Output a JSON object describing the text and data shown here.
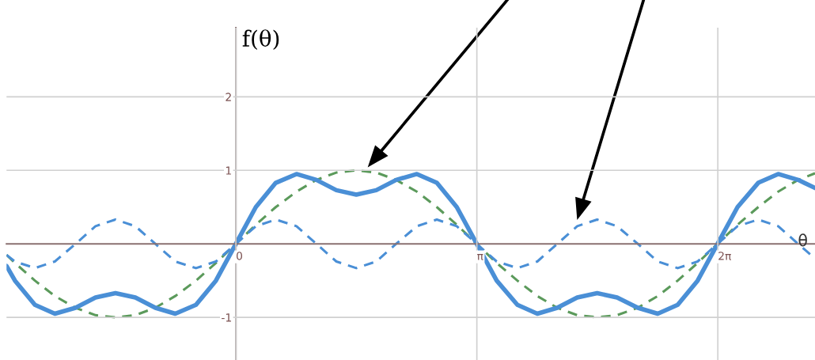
{
  "chart_data": {
    "type": "line",
    "xlabel": "θ",
    "ylabel": "f(θ)",
    "x": [
      -2.99,
      -2.88,
      -2.62,
      -2.36,
      -2.09,
      -1.83,
      -1.57,
      -1.31,
      -1.05,
      -0.79,
      -0.52,
      -0.26,
      0,
      0.26,
      0.52,
      0.79,
      1.05,
      1.31,
      1.57,
      1.83,
      2.09,
      2.36,
      2.62,
      2.88,
      3.14,
      3.4,
      3.67,
      3.93,
      4.19,
      4.45,
      4.71,
      4.97,
      5.24,
      5.5,
      5.76,
      6.02,
      6.28,
      6.54,
      6.81,
      7.07,
      7.33,
      7.55
    ],
    "series": [
      {
        "color": "#5b9a5b",
        "line_style": "dashed",
        "values": [
          -0.15,
          -0.26,
          -0.5,
          -0.71,
          -0.87,
          -0.97,
          -1,
          -0.97,
          -0.87,
          -0.71,
          -0.5,
          -0.26,
          0,
          0.26,
          0.5,
          0.71,
          0.87,
          0.97,
          1,
          0.97,
          0.87,
          0.71,
          0.5,
          0.26,
          0,
          -0.26,
          -0.5,
          -0.71,
          -0.87,
          -0.97,
          -1,
          -0.97,
          -0.87,
          -0.71,
          -0.5,
          -0.26,
          0,
          0.26,
          0.5,
          0.71,
          0.87,
          0.96
        ]
      },
      {
        "color": "#4a8fd6",
        "line_style": "dashed",
        "values": [
          -0.15,
          -0.24,
          -0.33,
          -0.24,
          0,
          0.24,
          0.33,
          0.24,
          0,
          -0.24,
          -0.33,
          -0.24,
          0,
          0.24,
          0.33,
          0.24,
          0,
          -0.24,
          -0.33,
          -0.24,
          0,
          0.24,
          0.33,
          0.24,
          0,
          -0.24,
          -0.33,
          -0.24,
          0,
          0.24,
          0.33,
          0.24,
          0,
          -0.24,
          -0.33,
          -0.24,
          0,
          0.24,
          0.33,
          0.24,
          0,
          -0.2
        ]
      },
      {
        "color": "#4a8fd6",
        "line_style": "solid",
        "values": [
          -0.3,
          -0.5,
          -0.83,
          -0.95,
          -0.87,
          -0.73,
          -0.67,
          -0.73,
          -0.87,
          -0.95,
          -0.83,
          -0.5,
          0,
          0.5,
          0.83,
          0.95,
          0.87,
          0.73,
          0.67,
          0.73,
          0.87,
          0.95,
          0.83,
          0.5,
          0,
          -0.5,
          -0.83,
          -0.95,
          -0.87,
          -0.73,
          -0.67,
          -0.73,
          -0.87,
          -0.95,
          -0.83,
          -0.5,
          0,
          0.5,
          0.83,
          0.95,
          0.87,
          0.76
        ]
      }
    ],
    "xlim": [
      -2.99,
      7.55
    ],
    "ylim": [
      -1.58,
      2.94
    ],
    "xticks": [
      {
        "value": 0,
        "label": "0"
      },
      {
        "value": 3.1416,
        "label": "π"
      },
      {
        "value": 6.2832,
        "label": "2π"
      }
    ],
    "yticks": [
      -1,
      1,
      2
    ],
    "grid": true,
    "legend": false,
    "marker": "none"
  }
}
